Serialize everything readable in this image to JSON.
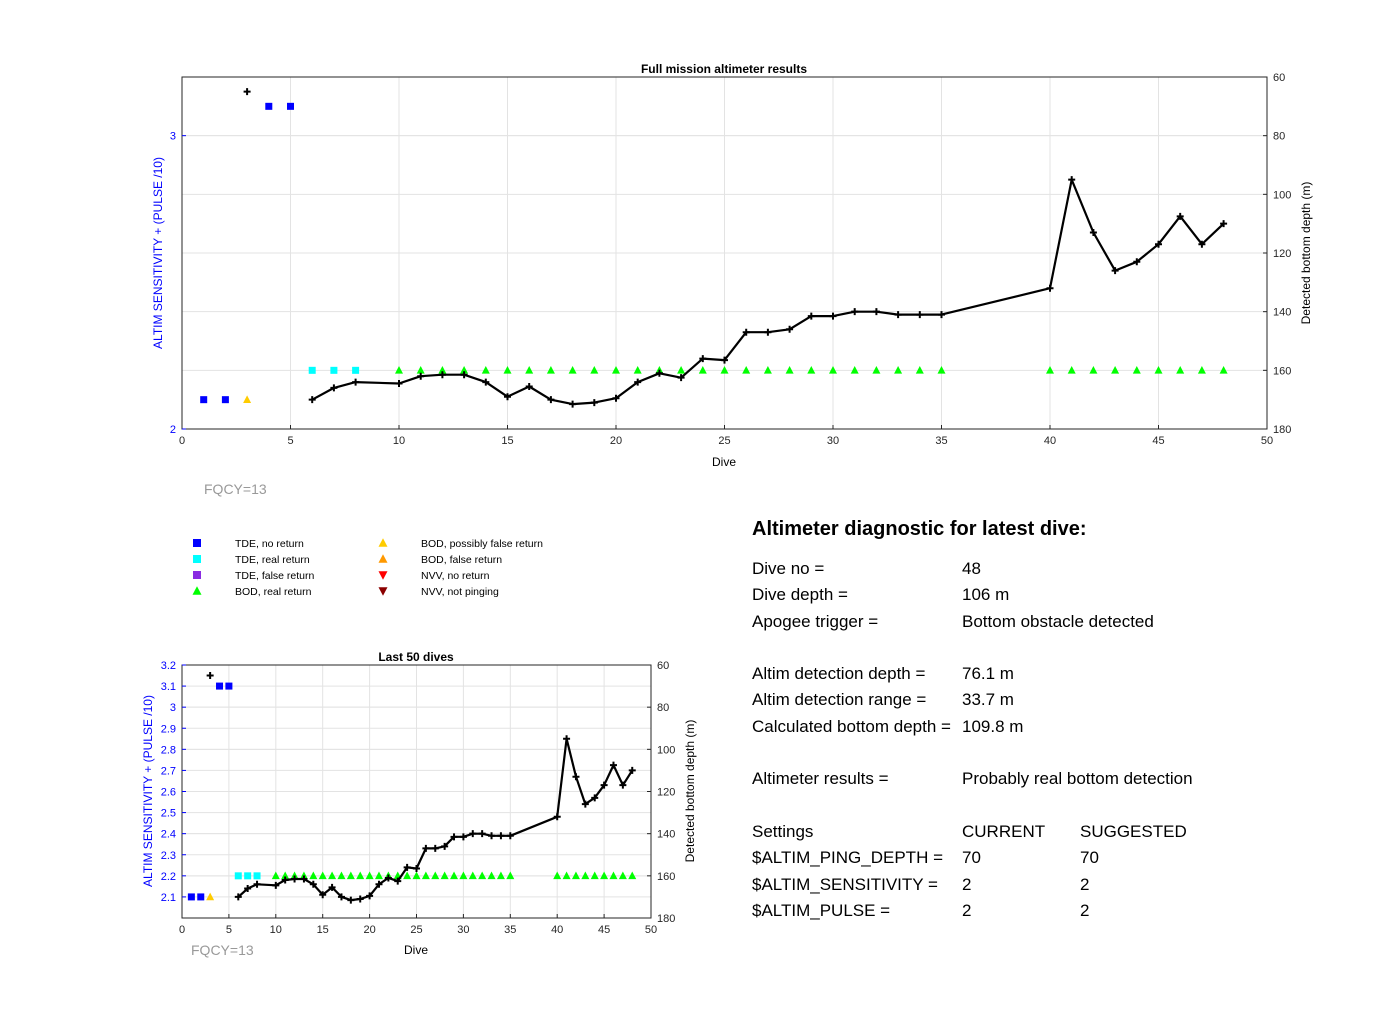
{
  "main_chart": {
    "title": "Full mission altimeter results",
    "xlabel": "Dive",
    "ylabel_left": "ALTIM SENSITIVITY + (PULSE /10)",
    "ylabel_right": "Detected bottom depth (m)",
    "fqcy_label": "FQCY=13"
  },
  "last50_chart": {
    "title": "Last 50 dives",
    "xlabel": "Dive",
    "ylabel_left": "ALTIM SENSITIVITY + (PULSE /10)",
    "ylabel_right": "Detected bottom depth (m)",
    "fqcy_label": "FQCY=13"
  },
  "legend": [
    {
      "label": "TDE, no return",
      "marker": "square",
      "color": "#0000ff"
    },
    {
      "label": "TDE, real return",
      "marker": "square",
      "color": "#00ffff"
    },
    {
      "label": "TDE, false return",
      "marker": "square",
      "color": "#8a2be2"
    },
    {
      "label": "BOD, real return",
      "marker": "triangle-up",
      "color": "#00ff00"
    },
    {
      "label": "BOD, possibly false return",
      "marker": "triangle-up",
      "color": "#ffcc00"
    },
    {
      "label": "BOD, false return",
      "marker": "triangle-up",
      "color": "#ff9900"
    },
    {
      "label": "NVV, no return",
      "marker": "triangle-down",
      "color": "#ff0000"
    },
    {
      "label": "NVV, not pinging",
      "marker": "triangle-down",
      "color": "#8b0000"
    }
  ],
  "diagnostic": {
    "title": "Altimeter diagnostic for latest dive:",
    "dive_no_label": "Dive no =",
    "dive_no_value": "48",
    "dive_depth_label": "Dive depth =",
    "dive_depth_value": "106 m",
    "apogee_label": "Apogee trigger =",
    "apogee_value": "Bottom obstacle detected",
    "altim_det_depth_label": "Altim detection depth =",
    "altim_det_depth_value": "76.1 m",
    "altim_det_range_label": "Altim detection range =",
    "altim_det_range_value": "33.7 m",
    "calc_depth_label": "Calculated bottom depth =",
    "calc_depth_value": "109.8 m",
    "results_label": "Altimeter results =",
    "results_value": "Probably real bottom detection",
    "settings_label": "Settings",
    "current_header": "CURRENT",
    "suggested_header": "SUGGESTED",
    "ping_depth_label": "$ALTIM_PING_DEPTH =",
    "ping_depth_current": "70",
    "ping_depth_suggested": "70",
    "sensitivity_label": "$ALTIM_SENSITIVITY =",
    "sensitivity_current": "2",
    "sensitivity_suggested": "2",
    "pulse_label": "$ALTIM_PULSE =",
    "pulse_current": "2",
    "pulse_suggested": "2"
  },
  "chart_data": [
    {
      "type": "scatter",
      "title": "Full mission altimeter results",
      "xlabel": "Dive",
      "ylabel": "ALTIM SENSITIVITY + (PULSE /10)",
      "y2label": "Detected bottom depth (m)",
      "xlim": [
        0,
        50
      ],
      "ylim": [
        2,
        3.2
      ],
      "y2lim": [
        60,
        180
      ],
      "y2_reversed": true,
      "xticks": [
        0,
        5,
        10,
        15,
        20,
        25,
        30,
        35,
        40,
        45,
        50
      ],
      "yticks": [
        2,
        3
      ],
      "y2ticks": [
        60,
        80,
        100,
        120,
        140,
        160,
        180
      ],
      "grid": true,
      "series": [
        {
          "name": "TDE, no return",
          "color": "#0000ff",
          "marker": "square",
          "x": [
            1,
            2,
            4,
            5
          ],
          "y": [
            2.1,
            2.1,
            3.1,
            3.1
          ]
        },
        {
          "name": "TDE, real return",
          "color": "#00ffff",
          "marker": "square",
          "x": [
            6,
            7,
            8
          ],
          "y": [
            2.2,
            2.2,
            2.2
          ]
        },
        {
          "name": "BOD, possibly false return",
          "color": "#ffcc00",
          "marker": "triangle-up",
          "x": [
            3
          ],
          "y": [
            2.1
          ]
        },
        {
          "name": "BOD, real return",
          "color": "#00ff00",
          "marker": "triangle-up",
          "x": [
            10,
            11,
            12,
            13,
            14,
            15,
            16,
            17,
            18,
            19,
            20,
            21,
            22,
            23,
            24,
            25,
            26,
            27,
            28,
            29,
            30,
            31,
            32,
            33,
            34,
            35,
            40,
            41,
            42,
            43,
            44,
            45,
            46,
            47,
            48
          ],
          "y": [
            2.2,
            2.2,
            2.2,
            2.2,
            2.2,
            2.2,
            2.2,
            2.2,
            2.2,
            2.2,
            2.2,
            2.2,
            2.2,
            2.2,
            2.2,
            2.2,
            2.2,
            2.2,
            2.2,
            2.2,
            2.2,
            2.2,
            2.2,
            2.2,
            2.2,
            2.2,
            2.2,
            2.2,
            2.2,
            2.2,
            2.2,
            2.2,
            2.2,
            2.2,
            2.2
          ]
        },
        {
          "name": "Detected bottom depth",
          "axis": "right",
          "color": "#000000",
          "marker": "plus",
          "line": false,
          "x": [
            3
          ],
          "y": [
            65
          ]
        },
        {
          "name": "Detected bottom depth",
          "axis": "right",
          "color": "#000000",
          "marker": "plus",
          "line": true,
          "x": [
            6,
            7,
            8,
            10,
            11,
            12,
            13,
            14,
            15,
            16,
            17,
            18,
            19,
            20,
            21,
            22,
            23,
            24,
            25,
            26,
            27,
            28,
            29,
            30,
            31,
            32,
            33,
            34,
            35,
            40,
            41,
            42,
            43,
            44,
            45,
            46,
            47,
            48
          ],
          "y": [
            170,
            166,
            164,
            164.5,
            162,
            161.5,
            161.5,
            164,
            169,
            165.5,
            170,
            171.5,
            171,
            169.5,
            164,
            161,
            162.5,
            156,
            156.5,
            147,
            147,
            146,
            141.5,
            141.5,
            140,
            140,
            141,
            141,
            141,
            132,
            95,
            113,
            126,
            123,
            117,
            107.5,
            117,
            110
          ]
        }
      ]
    },
    {
      "type": "scatter",
      "title": "Last 50 dives",
      "xlabel": "Dive",
      "ylabel": "ALTIM SENSITIVITY + (PULSE /10)",
      "y2label": "Detected bottom depth (m)",
      "xlim": [
        0,
        50
      ],
      "ylim": [
        2,
        3.2
      ],
      "y2lim": [
        60,
        180
      ],
      "y2_reversed": true,
      "xticks": [
        0,
        5,
        10,
        15,
        20,
        25,
        30,
        35,
        40,
        45,
        50
      ],
      "yticks": [
        2.1,
        2.2,
        2.3,
        2.4,
        2.5,
        2.6,
        2.7,
        2.8,
        2.9,
        3,
        3.1,
        3.2
      ],
      "y2ticks": [
        60,
        80,
        100,
        120,
        140,
        160,
        180
      ],
      "grid": true,
      "series": [
        {
          "name": "TDE, no return",
          "color": "#0000ff",
          "marker": "square",
          "x": [
            1,
            2,
            4,
            5
          ],
          "y": [
            2.1,
            2.1,
            3.1,
            3.1
          ]
        },
        {
          "name": "TDE, real return",
          "color": "#00ffff",
          "marker": "square",
          "x": [
            6,
            7,
            8
          ],
          "y": [
            2.2,
            2.2,
            2.2
          ]
        },
        {
          "name": "BOD, possibly false return",
          "color": "#ffcc00",
          "marker": "triangle-up",
          "x": [
            3
          ],
          "y": [
            2.1
          ]
        },
        {
          "name": "BOD, real return",
          "color": "#00ff00",
          "marker": "triangle-up",
          "x": [
            10,
            11,
            12,
            13,
            14,
            15,
            16,
            17,
            18,
            19,
            20,
            21,
            22,
            23,
            24,
            25,
            26,
            27,
            28,
            29,
            30,
            31,
            32,
            33,
            34,
            35,
            40,
            41,
            42,
            43,
            44,
            45,
            46,
            47,
            48
          ],
          "y": [
            2.2,
            2.2,
            2.2,
            2.2,
            2.2,
            2.2,
            2.2,
            2.2,
            2.2,
            2.2,
            2.2,
            2.2,
            2.2,
            2.2,
            2.2,
            2.2,
            2.2,
            2.2,
            2.2,
            2.2,
            2.2,
            2.2,
            2.2,
            2.2,
            2.2,
            2.2,
            2.2,
            2.2,
            2.2,
            2.2,
            2.2,
            2.2,
            2.2,
            2.2,
            2.2
          ]
        },
        {
          "name": "Detected bottom depth",
          "axis": "right",
          "color": "#000000",
          "marker": "plus",
          "line": false,
          "x": [
            3
          ],
          "y": [
            65
          ]
        },
        {
          "name": "Detected bottom depth",
          "axis": "right",
          "color": "#000000",
          "marker": "plus",
          "line": true,
          "x": [
            6,
            7,
            8,
            10,
            11,
            12,
            13,
            14,
            15,
            16,
            17,
            18,
            19,
            20,
            21,
            22,
            23,
            24,
            25,
            26,
            27,
            28,
            29,
            30,
            31,
            32,
            33,
            34,
            35,
            40,
            41,
            42,
            43,
            44,
            45,
            46,
            47,
            48
          ],
          "y": [
            170,
            166,
            164,
            164.5,
            162,
            161.5,
            161.5,
            164,
            169,
            165.5,
            170,
            171.5,
            171,
            169.5,
            164,
            161,
            162.5,
            156,
            156.5,
            147,
            147,
            146,
            141.5,
            141.5,
            140,
            140,
            141,
            141,
            141,
            132,
            95,
            113,
            126,
            123,
            117,
            107.5,
            117,
            110
          ]
        }
      ]
    }
  ]
}
